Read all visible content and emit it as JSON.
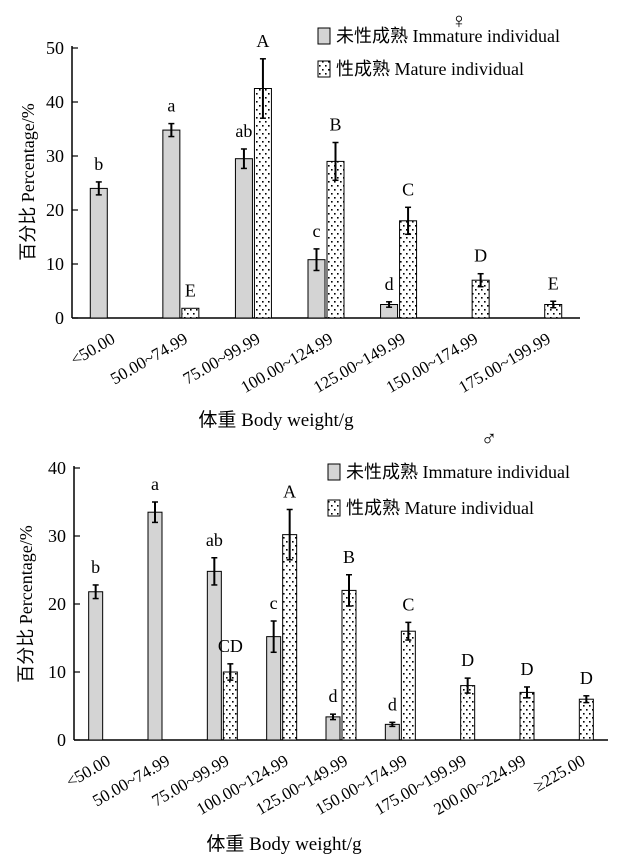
{
  "chart_data": [
    {
      "type": "bar",
      "title": "♀",
      "xlabel": "体重 Body weight/g",
      "ylabel": "百分比 Percentage/%",
      "ylim": [
        0,
        50
      ],
      "yticks": [
        "0",
        "10",
        "20",
        "30",
        "40",
        "50"
      ],
      "categories": [
        "<50.00",
        "50.00~74.99",
        "75.00~99.99",
        "100.00~124.99",
        "125.00~149.99",
        "150.00~174.99",
        "175.00~199.99"
      ],
      "legend_position": "top-right",
      "series": [
        {
          "name": "未性成熟 Immature individual",
          "fill": "gray",
          "values": [
            24,
            34.8,
            29.5,
            10.8,
            2.5,
            0,
            0
          ],
          "errors": [
            1.2,
            1.2,
            1.8,
            2.0,
            0.5,
            0,
            0
          ],
          "labels": [
            "b",
            "a",
            "ab",
            "c",
            "d",
            "",
            ""
          ]
        },
        {
          "name": "性成熟 Mature individual",
          "fill": "dots",
          "values": [
            0,
            1.8,
            42.5,
            29,
            18,
            7,
            2.5
          ],
          "errors": [
            0,
            0,
            5.5,
            3.5,
            2.5,
            1.2,
            0.6
          ],
          "labels": [
            "",
            "E",
            "A",
            "B",
            "C",
            "D",
            "E"
          ]
        }
      ]
    },
    {
      "type": "bar",
      "title": "♂",
      "xlabel": "体重 Body weight/g",
      "ylabel": "百分比 Percentage/%",
      "ylim": [
        0,
        40
      ],
      "yticks": [
        "0",
        "10",
        "20",
        "30",
        "40"
      ],
      "categories": [
        "<50.00",
        "50.00~74.99",
        "75.00~99.99",
        "100.00~124.99",
        "125.00~149.99",
        "150.00~174.99",
        "175.00~199.99",
        "200.00~224.99",
        "≥225.00"
      ],
      "legend_position": "top-right",
      "series": [
        {
          "name": "未性成熟 Immature individual",
          "fill": "gray",
          "values": [
            21.8,
            33.5,
            24.8,
            15.2,
            3.4,
            2.3,
            0,
            0,
            0
          ],
          "errors": [
            1.0,
            1.5,
            2.0,
            2.3,
            0.4,
            0.3,
            0,
            0,
            0
          ],
          "labels": [
            "b",
            "a",
            "ab",
            "c",
            "d",
            "d",
            "",
            "",
            ""
          ]
        },
        {
          "name": "性成熟 Mature individual",
          "fill": "dots",
          "values": [
            0,
            0,
            10,
            30.2,
            22,
            16,
            8,
            7,
            6
          ],
          "errors": [
            0,
            0,
            1.2,
            3.7,
            2.3,
            1.3,
            1.1,
            0.8,
            0.5
          ],
          "labels": [
            "",
            "",
            "CD",
            "A",
            "B",
            "C",
            "D",
            "D",
            "D"
          ]
        }
      ]
    }
  ]
}
